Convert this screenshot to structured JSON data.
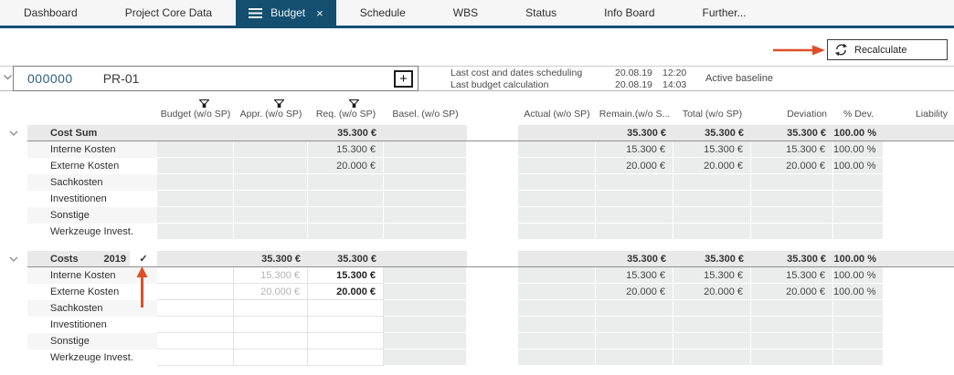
{
  "tabs": [
    {
      "label": "Dashboard",
      "active": false
    },
    {
      "label": "Project Core Data",
      "active": false
    },
    {
      "label": "Budget",
      "active": true
    },
    {
      "label": "Schedule",
      "active": false
    },
    {
      "label": "WBS",
      "active": false
    },
    {
      "label": "Status",
      "active": false
    },
    {
      "label": "Info Board",
      "active": false
    },
    {
      "label": "Further...",
      "active": false
    }
  ],
  "toolbar": {
    "recalculate_label": "Recalculate"
  },
  "project_header": {
    "number": "000000",
    "code": "PR-01",
    "info": [
      {
        "label": "Last cost and dates scheduling",
        "date": "20.08.19",
        "time": "12:20"
      },
      {
        "label": "Last budget calculation",
        "date": "20.08.19",
        "time": "14:03"
      }
    ],
    "baseline_label": "Active baseline"
  },
  "icons": {
    "check": "✓",
    "plus": "+",
    "close": "×"
  },
  "colors": {
    "accent_blue": "#144f70",
    "annotation_orange": "#dd4f28",
    "project_number_blue": "#2d5f80"
  },
  "table": {
    "columns": [
      {
        "key": "budget",
        "label": "Budget (w/o SP)",
        "filter": true,
        "align": "c"
      },
      {
        "key": "appr",
        "label": "Appr. (w/o SP)",
        "filter": true,
        "align": "c"
      },
      {
        "key": "req",
        "label": "Req. (w/o SP)",
        "filter": true,
        "align": "c"
      },
      {
        "key": "basel",
        "label": "Basel. (w/o SP)",
        "filter": false,
        "align": "c"
      },
      {
        "key": "actual",
        "label": "Actual (w/o SP)",
        "filter": false,
        "align": "c"
      },
      {
        "key": "remain",
        "label": "Remain.(w/o S...",
        "filter": false,
        "align": "c"
      },
      {
        "key": "total",
        "label": "Total (w/o SP)",
        "filter": false,
        "align": "c"
      },
      {
        "key": "deviation",
        "label": "Deviation",
        "filter": false,
        "align": "r"
      },
      {
        "key": "pdev",
        "label": "% Dev.",
        "filter": false,
        "align": "c"
      },
      {
        "key": "liability",
        "label": "Liability",
        "filter": false,
        "align": "r"
      }
    ],
    "groups": [
      {
        "name": "Cost Sum",
        "year": "",
        "checked": false,
        "editable": false,
        "totals": {
          "budget": "",
          "appr": "",
          "req": "35.300 €",
          "basel": "",
          "actual": "",
          "remain": "35.300 €",
          "total": "35.300 €",
          "deviation": "35.300 €",
          "pdev": "100.00 %",
          "liability": ""
        },
        "rows": [
          {
            "label": "Interne Kosten",
            "budget": "",
            "appr": "",
            "req": "15.300 €",
            "basel": "",
            "actual": "",
            "remain": "15.300 €",
            "total": "15.300 €",
            "deviation": "15.300 €",
            "pdev": "100.00 %",
            "liability": ""
          },
          {
            "label": "Externe Kosten",
            "budget": "",
            "appr": "",
            "req": "20.000 €",
            "basel": "",
            "actual": "",
            "remain": "20.000 €",
            "total": "20.000 €",
            "deviation": "20.000 €",
            "pdev": "100.00 %",
            "liability": ""
          },
          {
            "label": "Sachkosten",
            "budget": "",
            "appr": "",
            "req": "",
            "basel": "",
            "actual": "",
            "remain": "",
            "total": "",
            "deviation": "",
            "pdev": "",
            "liability": ""
          },
          {
            "label": "Investitionen",
            "budget": "",
            "appr": "",
            "req": "",
            "basel": "",
            "actual": "",
            "remain": "",
            "total": "",
            "deviation": "",
            "pdev": "",
            "liability": ""
          },
          {
            "label": "Sonstige",
            "budget": "",
            "appr": "",
            "req": "",
            "basel": "",
            "actual": "",
            "remain": "",
            "total": "",
            "deviation": "",
            "pdev": "",
            "liability": ""
          },
          {
            "label": "Werkzeuge Invest.",
            "budget": "",
            "appr": "",
            "req": "",
            "basel": "",
            "actual": "",
            "remain": "",
            "total": "",
            "deviation": "",
            "pdev": "",
            "liability": ""
          }
        ]
      },
      {
        "name": "Costs",
        "year": "2019",
        "checked": true,
        "editable": true,
        "totals": {
          "budget": "",
          "appr": "35.300 €",
          "req": "35.300 €",
          "basel": "",
          "actual": "",
          "remain": "35.300 €",
          "total": "35.300 €",
          "deviation": "35.300 €",
          "pdev": "100.00 %",
          "liability": ""
        },
        "rows": [
          {
            "label": "Interne Kosten",
            "budget": "",
            "appr": "15.300 €",
            "req": "15.300 €",
            "basel": "",
            "actual": "",
            "remain": "15.300 €",
            "total": "15.300 €",
            "deviation": "15.300 €",
            "pdev": "100.00 %",
            "liability": ""
          },
          {
            "label": "Externe Kosten",
            "budget": "",
            "appr": "20.000 €",
            "req": "20.000 €",
            "basel": "",
            "actual": "",
            "remain": "20.000 €",
            "total": "20.000 €",
            "deviation": "20.000 €",
            "pdev": "100.00 %",
            "liability": ""
          },
          {
            "label": "Sachkosten",
            "budget": "",
            "appr": "",
            "req": "",
            "basel": "",
            "actual": "",
            "remain": "",
            "total": "",
            "deviation": "",
            "pdev": "",
            "liability": ""
          },
          {
            "label": "Investitionen",
            "budget": "",
            "appr": "",
            "req": "",
            "basel": "",
            "actual": "",
            "remain": "",
            "total": "",
            "deviation": "",
            "pdev": "",
            "liability": ""
          },
          {
            "label": "Sonstige",
            "budget": "",
            "appr": "",
            "req": "",
            "basel": "",
            "actual": "",
            "remain": "",
            "total": "",
            "deviation": "",
            "pdev": "",
            "liability": ""
          },
          {
            "label": "Werkzeuge Invest.",
            "budget": "",
            "appr": "",
            "req": "",
            "basel": "",
            "actual": "",
            "remain": "",
            "total": "",
            "deviation": "",
            "pdev": "",
            "liability": ""
          }
        ]
      }
    ]
  }
}
